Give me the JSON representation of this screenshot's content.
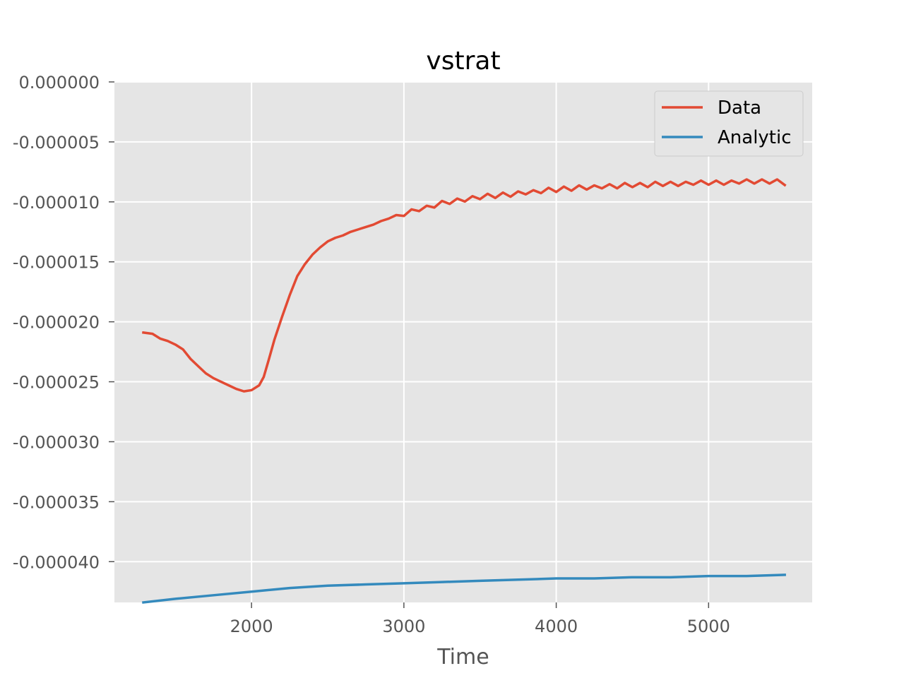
{
  "chart_data": {
    "type": "line",
    "title": "vstrat",
    "xlabel": "Time",
    "ylabel": "",
    "xlim": [
      1100,
      5680
    ],
    "ylim": [
      -4.34e-05,
      0.0
    ],
    "xticks": [
      2000,
      3000,
      4000,
      5000
    ],
    "xtick_labels": [
      "2000",
      "3000",
      "4000",
      "5000"
    ],
    "yticks": [
      0.0,
      -5e-06,
      -1e-05,
      -1.5e-05,
      -2e-05,
      -2.5e-05,
      -3e-05,
      -3.5e-05,
      -4e-05
    ],
    "ytick_labels": [
      "0.000000",
      "-0.000005",
      "-0.000010",
      "-0.000015",
      "-0.000020",
      "-0.000025",
      "-0.000030",
      "-0.000035",
      "-0.000040"
    ],
    "grid": true,
    "legend_position": "top-right",
    "series": [
      {
        "name": "Data",
        "color": "#E24A33",
        "x": [
          1290,
          1350,
          1400,
          1450,
          1500,
          1550,
          1600,
          1650,
          1700,
          1750,
          1800,
          1850,
          1900,
          1950,
          2000,
          2050,
          2080,
          2110,
          2150,
          2200,
          2250,
          2300,
          2350,
          2400,
          2450,
          2500,
          2550,
          2600,
          2650,
          2700,
          2750,
          2800,
          2850,
          2900,
          2950,
          3000,
          3050,
          3100,
          3150,
          3200,
          3250,
          3300,
          3350,
          3400,
          3450,
          3500,
          3550,
          3600,
          3650,
          3700,
          3750,
          3800,
          3850,
          3900,
          3950,
          4000,
          4050,
          4100,
          4150,
          4200,
          4250,
          4300,
          4350,
          4400,
          4450,
          4500,
          4550,
          4600,
          4650,
          4700,
          4750,
          4800,
          4850,
          4900,
          4950,
          5000,
          5050,
          5100,
          5150,
          5200,
          5250,
          5300,
          5350,
          5400,
          5450,
          5500
        ],
        "values": [
          -2.09e-05,
          -2.1e-05,
          -2.14e-05,
          -2.16e-05,
          -2.19e-05,
          -2.23e-05,
          -2.31e-05,
          -2.37e-05,
          -2.43e-05,
          -2.47e-05,
          -2.5e-05,
          -2.53e-05,
          -2.56e-05,
          -2.58e-05,
          -2.57e-05,
          -2.53e-05,
          -2.46e-05,
          -2.33e-05,
          -2.15e-05,
          -1.96e-05,
          -1.78e-05,
          -1.62e-05,
          -1.52e-05,
          -1.44e-05,
          -1.38e-05,
          -1.33e-05,
          -1.3e-05,
          -1.28e-05,
          -1.25e-05,
          -1.23e-05,
          -1.21e-05,
          -1.19e-05,
          -1.16e-05,
          -1.14e-05,
          -1.11e-05,
          -1.1e-05,
          -1.08e-05,
          -1.06e-05,
          -1.05e-05,
          -1.03e-05,
          -1.01e-05,
          -1e-05,
          -9.9e-06,
          -9.8e-06,
          -9.7e-06,
          -9.6e-06,
          -9.5e-06,
          -9.5e-06,
          -9.4e-06,
          -9.4e-06,
          -9.3e-06,
          -9.2e-06,
          -9.2e-06,
          -9.1e-06,
          -9e-06,
          -9e-06,
          -8.9e-06,
          -8.9e-06,
          -8.8e-06,
          -8.8e-06,
          -8.8e-06,
          -8.7e-06,
          -8.7e-06,
          -8.7e-06,
          -8.6e-06,
          -8.6e-06,
          -8.6e-06,
          -8.6e-06,
          -8.5e-06,
          -8.5e-06,
          -8.5e-06,
          -8.5e-06,
          -8.5e-06,
          -8.4e-06,
          -8.4e-06,
          -8.4e-06,
          -8.4e-06,
          -8.4e-06,
          -8.4e-06,
          -8.3e-06,
          -8.3e-06,
          -8.3e-06,
          -8.3e-06,
          -8.3e-06,
          -8.3e-06,
          -8.6e-06
        ],
        "ripple": 3.5e-07
      },
      {
        "name": "Analytic",
        "color": "#348ABD",
        "x": [
          1290,
          1500,
          1750,
          2000,
          2250,
          2500,
          2750,
          3000,
          3250,
          3500,
          3750,
          4000,
          4250,
          4500,
          4750,
          5000,
          5250,
          5500
        ],
        "values": [
          -4.34e-05,
          -4.31e-05,
          -4.28e-05,
          -4.25e-05,
          -4.22e-05,
          -4.2e-05,
          -4.19e-05,
          -4.18e-05,
          -4.17e-05,
          -4.16e-05,
          -4.15e-05,
          -4.14e-05,
          -4.14e-05,
          -4.13e-05,
          -4.13e-05,
          -4.12e-05,
          -4.12e-05,
          -4.11e-05
        ]
      }
    ]
  }
}
